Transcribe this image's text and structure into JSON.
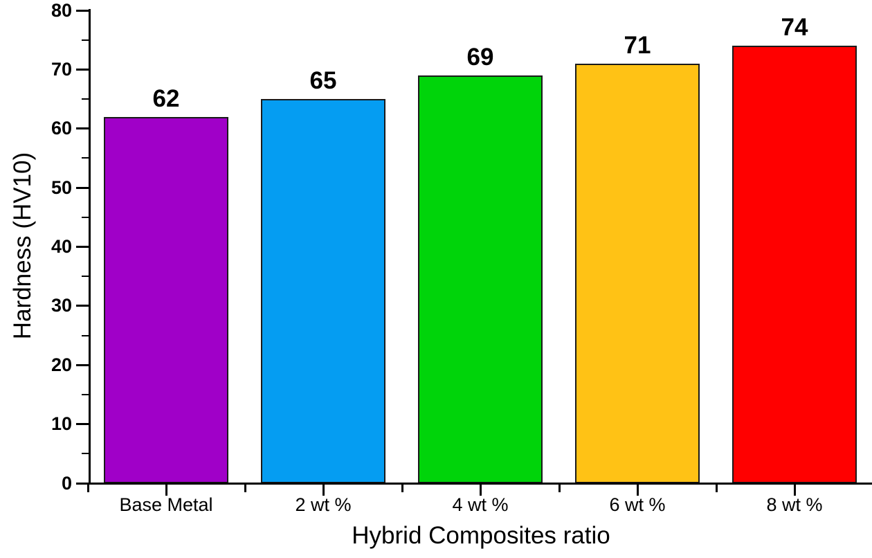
{
  "figure": {
    "background_color": "#FFFFFF",
    "axis_color": "#000000",
    "text_color": "#000000",
    "bar_border_color": "#1A1A1A"
  },
  "chart_data": {
    "type": "bar",
    "title": "",
    "categories": [
      "Base Metal",
      "2 wt %",
      "4 wt %",
      "6 wt %",
      "8 wt %"
    ],
    "values": [
      62,
      65,
      69,
      71,
      74
    ],
    "value_labels": [
      "62",
      "65",
      "69",
      "71",
      "74"
    ],
    "bar_colors": [
      "#A000C8",
      "#059DF2",
      "#00D40A",
      "#FFC215",
      "#FF0000"
    ],
    "xlabel": "Hybrid Composites ratio",
    "ylabel": "Hardness (HV10)",
    "ylim": [
      0,
      80
    ],
    "y_major_ticks": [
      0,
      10,
      20,
      30,
      40,
      50,
      60,
      70,
      80
    ],
    "y_minor_ticks": [
      5,
      15,
      25,
      35,
      45,
      55,
      65,
      75
    ],
    "grid": false,
    "legend_position": "none"
  }
}
